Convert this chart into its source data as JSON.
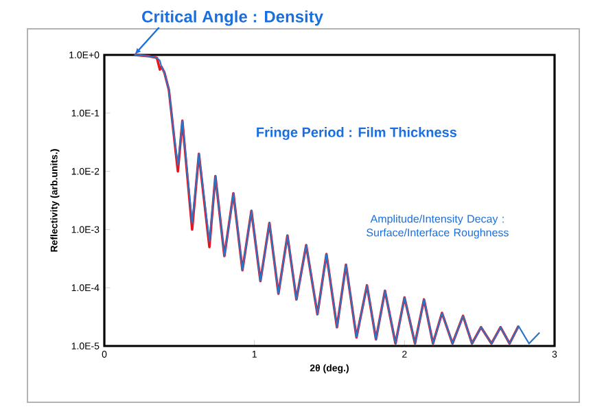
{
  "chart_data": {
    "type": "line",
    "xlabel": "2θ (deg.)",
    "ylabel": "Reflectivity (arb.units.)",
    "log": "y",
    "x": [
      0.2,
      0.3,
      0.35,
      0.37,
      0.38,
      0.4,
      0.43,
      0.46,
      0.49,
      0.52,
      0.585,
      0.63,
      0.7,
      0.74,
      0.8,
      0.86,
      0.92,
      0.98,
      1.04,
      1.1,
      1.16,
      1.22,
      1.28,
      1.345,
      1.42,
      1.48,
      1.55,
      1.61,
      1.68,
      1.75,
      1.81,
      1.87,
      1.94,
      2.0,
      2.07,
      2.13,
      2.19,
      2.25,
      2.32,
      2.39,
      2.45,
      2.51,
      2.58,
      2.64,
      2.7,
      2.76,
      2.83,
      2.9
    ],
    "series": [
      {
        "color": "#e8141e",
        "values": [
          1.0,
          0.95,
          0.89,
          0.56,
          0.63,
          0.5,
          0.25,
          0.05,
          0.01,
          0.074,
          0.001,
          0.02,
          0.0005,
          0.0083,
          0.00035,
          0.0042,
          0.0002,
          0.0021,
          0.00013,
          0.0013,
          7.9e-05,
          0.00079,
          6.3e-05,
          0.00054,
          3.5e-05,
          0.00038,
          2.1e-05,
          0.00025,
          1.4e-05,
          0.00011,
          1.3e-05,
          8.9e-05,
          1.1e-05,
          6.8e-05,
          1.1e-05,
          6.3e-05,
          1.1e-05,
          3.7e-05,
          1.1e-05,
          3.3e-05,
          1.1e-05,
          2.1e-05,
          1.1e-05,
          2.1e-05,
          1.1e-05,
          2.2e-05,
          null,
          null
        ]
      },
      {
        "color": "#2a74c8",
        "values": [
          1.0,
          0.95,
          0.89,
          0.8,
          0.63,
          0.5,
          0.25,
          0.05,
          0.013,
          0.074,
          0.0013,
          0.02,
          0.00063,
          0.0083,
          0.00035,
          0.0042,
          0.0002,
          0.0021,
          0.00013,
          0.0013,
          7.9e-05,
          0.00079,
          6.3e-05,
          0.00054,
          3.5e-05,
          0.00038,
          2.1e-05,
          0.00025,
          1.4e-05,
          0.00011,
          1.3e-05,
          8.9e-05,
          1.1e-05,
          6.8e-05,
          1.1e-05,
          6.3e-05,
          1.1e-05,
          3.7e-05,
          1.1e-05,
          3.3e-05,
          1.1e-05,
          2.1e-05,
          1.1e-05,
          2.1e-05,
          1.1e-05,
          2.2e-05,
          1.1e-05,
          1.7e-05
        ]
      }
    ],
    "xlim": [
      0,
      3
    ],
    "xticks": [
      0,
      1,
      2,
      3
    ],
    "ylim": [
      1e-05,
      1.0
    ],
    "yticks": [
      {
        "value": 1e-05,
        "label": "1.0E-5"
      },
      {
        "value": 0.0001,
        "label": "1.0E-4"
      },
      {
        "value": 0.001,
        "label": "1.0E-3"
      },
      {
        "value": 0.01,
        "label": "1.0E-2"
      },
      {
        "value": 0.1,
        "label": "1.0E-1"
      },
      {
        "value": 1.0,
        "label": "1.0E+0"
      }
    ],
    "annotations": [
      {
        "text": "Critical Angle : Density",
        "x": 0.2,
        "y": 1.0
      },
      "Fringe Period : Film Thickness",
      "Amplitude/Intensity Decay : Surface/Interface Roughness"
    ]
  }
}
